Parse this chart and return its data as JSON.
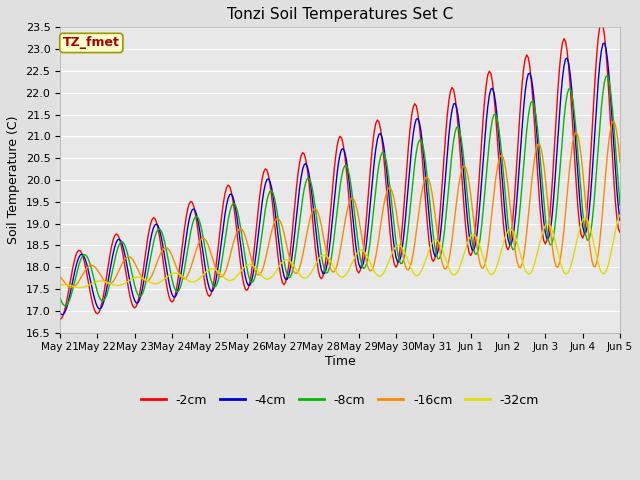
{
  "title": "Tonzi Soil Temperatures Set C",
  "xlabel": "Time",
  "ylabel": "Soil Temperature (C)",
  "ylim": [
    16.5,
    23.5
  ],
  "xtick_labels": [
    "May 21",
    "May 22",
    "May 23",
    "May 24",
    "May 25",
    "May 26",
    "May 27",
    "May 28",
    "May 29",
    "May 30",
    "May 31",
    "Jun 1",
    "Jun 2",
    "Jun 3",
    "Jun 4",
    "Jun 5"
  ],
  "series_colors": [
    "#ff0000",
    "#0000dd",
    "#00bb00",
    "#ff8800",
    "#dddd00"
  ],
  "series_labels": [
    "-2cm",
    "-4cm",
    "-8cm",
    "-16cm",
    "-32cm"
  ],
  "annotation_text": "TZ_fmet",
  "annotation_bg": "#ffffcc",
  "annotation_border": "#999900",
  "annotation_text_color": "#aa0000",
  "fig_bg_color": "#e0e0e0",
  "plot_bg_color": "#e8e8e8",
  "grid_color": "#ffffff",
  "yticks": [
    16.5,
    17.0,
    17.5,
    18.0,
    18.5,
    19.0,
    19.5,
    20.0,
    20.5,
    21.0,
    21.5,
    22.0,
    22.5,
    23.0,
    23.5
  ]
}
